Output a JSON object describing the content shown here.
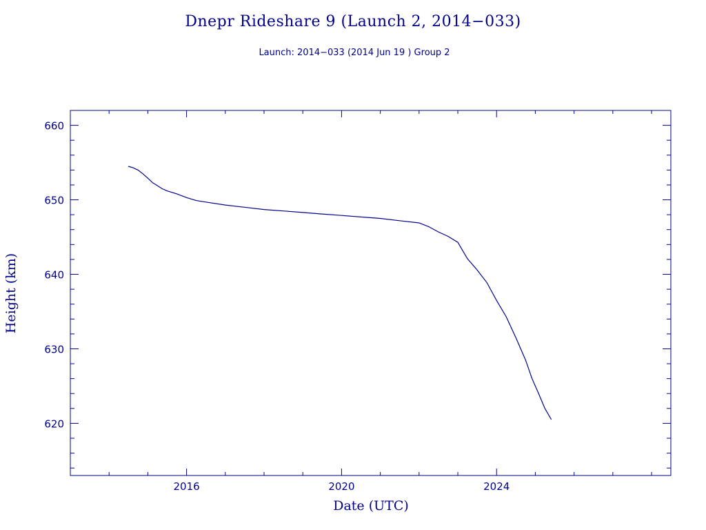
{
  "chart_data": {
    "type": "line",
    "title": "Dnepr Rideshare 9 (Launch 2, 2014−033)",
    "subtitle": "Launch: 2014−033  (2014 Jun 19 )  Group 2",
    "xlabel": "Date (UTC)",
    "ylabel": "Height (km)",
    "xlim": [
      "2013-01-01",
      "2028-07-01"
    ],
    "ylim": [
      613,
      662
    ],
    "x_major_ticks": [
      "2016",
      "2020",
      "2024"
    ],
    "y_major_ticks": [
      "620",
      "630",
      "640",
      "650",
      "660"
    ],
    "color": "#00008b",
    "grid": false,
    "series": [
      {
        "x": [
          "2014-07-01",
          "2014-08-15",
          "2014-10-01",
          "2014-11-15",
          "2015-01-01",
          "2015-02-15",
          "2015-04-01",
          "2015-05-15",
          "2015-07-01",
          "2015-10-01",
          "2016-01-01",
          "2016-04-01",
          "2016-07-01",
          "2017-01-01",
          "2017-07-01",
          "2018-01-01",
          "2018-07-01",
          "2019-01-01",
          "2019-07-01",
          "2020-01-01",
          "2020-07-01",
          "2021-01-01",
          "2021-07-01",
          "2022-01-01",
          "2022-04-01",
          "2022-07-01",
          "2022-10-01",
          "2023-01-01",
          "2023-04-01",
          "2023-07-01",
          "2023-10-01",
          "2024-01-01",
          "2024-04-01",
          "2024-07-01",
          "2024-10-01",
          "2024-12-01",
          "2025-02-01",
          "2025-04-01",
          "2025-06-01"
        ],
        "y": [
          654.5,
          654.3,
          654.0,
          653.5,
          652.9,
          652.3,
          651.9,
          651.5,
          651.2,
          650.8,
          650.3,
          649.9,
          649.7,
          649.3,
          649.0,
          648.7,
          648.5,
          648.3,
          648.1,
          647.9,
          647.7,
          647.5,
          647.2,
          646.9,
          646.4,
          645.7,
          645.1,
          644.3,
          642.1,
          640.6,
          638.9,
          636.5,
          634.3,
          631.5,
          628.5,
          626.0,
          624.0,
          622.0,
          620.5
        ]
      }
    ]
  }
}
